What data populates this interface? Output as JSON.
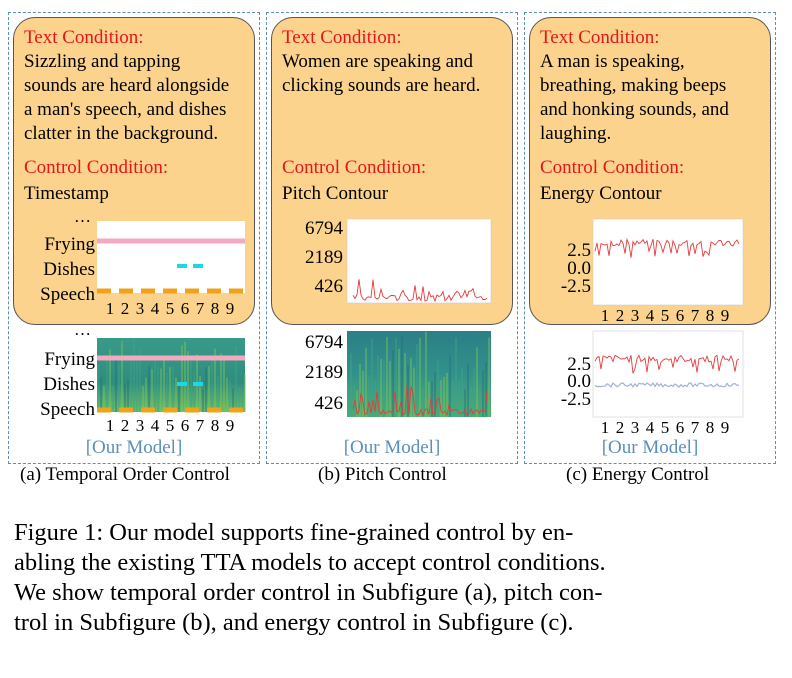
{
  "panels": [
    {
      "label_text": "Text Condition:",
      "text": [
        "Sizzling and tapping",
        "sounds are heard alongside",
        "a man's speech, and dishes",
        "clatter in the background."
      ],
      "control_label": "Control Condition:",
      "control_type": "Timestamp",
      "model_label": "[Our Model]",
      "caption": "(a)  Temporal Order Control"
    },
    {
      "label_text": "Text Condition:",
      "text": [
        "Women are speaking and",
        "clicking sounds are heard."
      ],
      "control_label": "Control Condition:",
      "control_type": "Pitch Contour",
      "model_label": "[Our Model]",
      "caption": "(b)  Pitch Control"
    },
    {
      "label_text": "Text Condition:",
      "text": [
        "A man is speaking,",
        "breathing, making beeps",
        "and honking sounds, and",
        "laughing."
      ],
      "control_label": "Control Condition:",
      "control_type": "Energy Contour",
      "model_label": "[Our Model]",
      "caption": "(c)  Energy Control"
    }
  ],
  "figure_caption": [
    "Figure 1: Our model supports fine-grained control by en-",
    "abling the existing TTA models to accept control conditions.",
    "We show temporal order control in Subfigure (a), pitch con-",
    "trol in Subfigure (b), and energy control in Subfigure (c)."
  ],
  "colors": {
    "accent_red": "#e8141b",
    "bubble": "#fbd38c",
    "dashed_border": "#5b8fb9",
    "model_label": "#5b8fb9"
  },
  "chart_data": [
    {
      "type": "timeline",
      "panel": "a",
      "y_tick_labels": [
        "…",
        "Frying",
        "Dishes",
        "Speech"
      ],
      "x_tick_labels": [
        "1",
        "2",
        "3",
        "4",
        "5",
        "6",
        "7",
        "8",
        "9"
      ]
    },
    {
      "type": "spectrogram-timeline",
      "panel": "a",
      "y_tick_labels": [
        "…",
        "Frying",
        "Dishes",
        "Speech"
      ],
      "x_tick_labels": [
        "1",
        "2",
        "3",
        "4",
        "5",
        "6",
        "7",
        "8",
        "9"
      ]
    },
    {
      "type": "line",
      "panel": "b",
      "y_tick_labels": [
        "6794",
        "2189",
        "426"
      ],
      "x_tick_labels": []
    },
    {
      "type": "spectrogram",
      "panel": "b",
      "y_tick_labels": [
        "6794",
        "2189",
        "426"
      ],
      "x_tick_labels": []
    },
    {
      "type": "line",
      "panel": "c",
      "y_tick_labels": [
        "2.5",
        "0.0",
        "-2.5"
      ],
      "x_tick_labels": [
        "1",
        "2",
        "3",
        "4",
        "5",
        "6",
        "7",
        "8",
        "9"
      ]
    },
    {
      "type": "line",
      "panel": "c",
      "y_tick_labels": [
        "2.5",
        "0.0",
        "-2.5"
      ],
      "x_tick_labels": [
        "1",
        "2",
        "3",
        "4",
        "5",
        "6",
        "7",
        "8",
        "9"
      ]
    }
  ]
}
